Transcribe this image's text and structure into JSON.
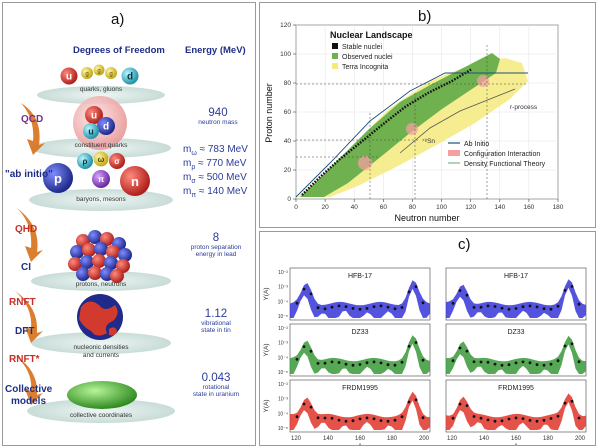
{
  "panel_a": {
    "label": "a)",
    "headers": {
      "dof": "Degrees of Freedom",
      "energy": "Energy (MeV)"
    },
    "methods": [
      {
        "text": "QCD",
        "color": "purple"
      },
      {
        "text": "\"ab initio\"",
        "color": "blue"
      },
      {
        "text": "QHD",
        "color": "red"
      },
      {
        "text": "CI",
        "color": "blue"
      },
      {
        "text": "RNFT",
        "color": "red"
      },
      {
        "text": "DFT",
        "color": "blue"
      },
      {
        "text": "RNFT*",
        "color": "red"
      },
      {
        "text": "Collective",
        "color": "blue"
      },
      {
        "text": "models",
        "color": "blue"
      }
    ],
    "captions": {
      "quarks": "quarks, gluons",
      "constituent": "constituent quarks",
      "baryons": "baryons, mesons",
      "protons": "protons, neutrons",
      "densities_1": "nucleonic densities",
      "densities_2": "and currents",
      "collective": "collective coordinates"
    },
    "quark_letters": [
      "u",
      "g",
      "g",
      "g",
      "d"
    ],
    "nucleon_letters": {
      "u1": "u",
      "d": "d",
      "u2": "u"
    },
    "meson_letters": {
      "rho": "ρ",
      "omega": "ω",
      "sigma": "σ",
      "p": "p",
      "pi": "π",
      "n": "n"
    },
    "energies": {
      "e1_value": "940",
      "e1_label": "neutron mass",
      "m1": "m",
      "m1_sub": "ω",
      "m1_val": "≈  783 MeV",
      "m2": "m",
      "m2_sub": "ρ",
      "m2_val": "≈  770 MeV",
      "m3": "m",
      "m3_sub": "σ",
      "m3_val": "≈  500 MeV",
      "m4": "m",
      "m4_sub": "π",
      "m4_val": "≈  140 MeV",
      "e2_value": "8",
      "e2_label_1": "proton separation",
      "e2_label_2": "energy in lead",
      "e3_value": "1.12",
      "e3_label_1": "vibrational",
      "e3_label_2": "state in tin",
      "e4_value": "0.043",
      "e4_label_1": "rotational",
      "e4_label_2": "state in uranium"
    }
  },
  "panel_b": {
    "label": "b)",
    "legend_title": "Nuclear Landscape",
    "legend": [
      "Stable nuclei",
      "Observed nuclei",
      "Terra Incognita"
    ],
    "legend2": [
      "Ab Initio",
      "Configuration Interaction",
      "Density Functional Theory"
    ],
    "xlabel": "Neutron number",
    "ylabel": "Proton number",
    "annotation_rprocess": "r-process",
    "annotation_sn": "⁷⁸Sn",
    "x_ticks": [
      "0",
      "20",
      "40",
      "60",
      "80",
      "100",
      "120",
      "140",
      "160",
      "180"
    ],
    "y_ticks": [
      "0",
      "20",
      "40",
      "60",
      "80",
      "100",
      "120"
    ],
    "colors": {
      "stable": "#111111",
      "observed": "#6aa84f",
      "terra": "#f2e46b",
      "ab_initio": "#1f4e79",
      "ci": "#f4a0a0",
      "dft": "#7fb77e"
    }
  },
  "panel_c": {
    "label": "c)",
    "ylabel": "Y(A)",
    "xlabel": "A",
    "x_ticks": [
      "120",
      "140",
      "160",
      "180",
      "200"
    ],
    "y_ticks": [
      "10⁻²",
      "10⁻³",
      "10⁻⁴",
      "10⁻⁵"
    ],
    "rows": [
      {
        "model": "HFB-17",
        "color": "#3b3bd9"
      },
      {
        "model": "DZ33",
        "color": "#3f9b3f"
      },
      {
        "model": "FRDM1995",
        "color": "#e03a30"
      }
    ]
  }
}
